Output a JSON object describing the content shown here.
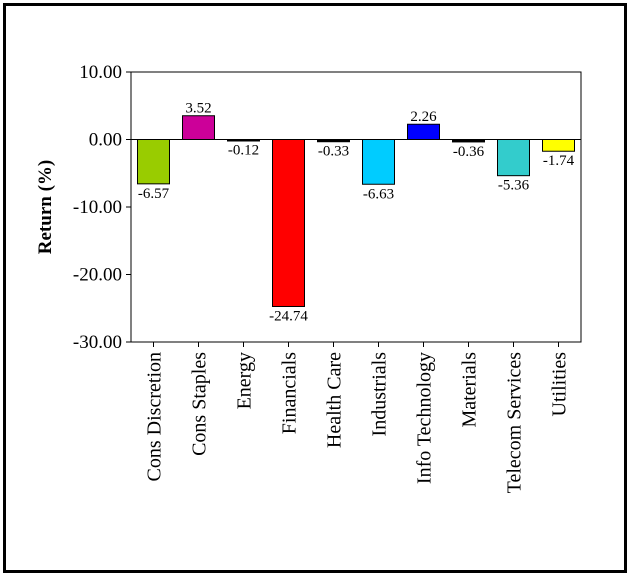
{
  "chart_data": {
    "type": "bar",
    "title": "",
    "xlabel": "",
    "ylabel": "Return (%)",
    "ylim": [
      -30,
      10
    ],
    "yticks": [
      10,
      0,
      -10,
      -20,
      -30
    ],
    "ytick_labels": [
      "10.00",
      "0.00",
      "-10.00",
      "-20.00",
      "-30.00"
    ],
    "grid": false,
    "legend": "none",
    "categories": [
      "Cons Discretion",
      "Cons Staples",
      "Energy",
      "Financials",
      "Health Care",
      "Industrials",
      "Info Technology",
      "Materials",
      "Telecom Services",
      "Utilities"
    ],
    "values": [
      -6.57,
      3.52,
      -0.12,
      -24.74,
      -0.33,
      -6.63,
      2.26,
      -0.36,
      -5.36,
      -1.74
    ],
    "value_labels": [
      "-6.57",
      "3.52",
      "-0.12",
      "-24.74",
      "-0.33",
      "-6.63",
      "2.26",
      "-0.36",
      "-5.36",
      "-1.74"
    ],
    "colors": [
      "#99cc00",
      "#cc0099",
      "#000000",
      "#ff0000",
      "#000000",
      "#00ccff",
      "#0000ff",
      "#000000",
      "#33cccc",
      "#ffff00"
    ]
  }
}
